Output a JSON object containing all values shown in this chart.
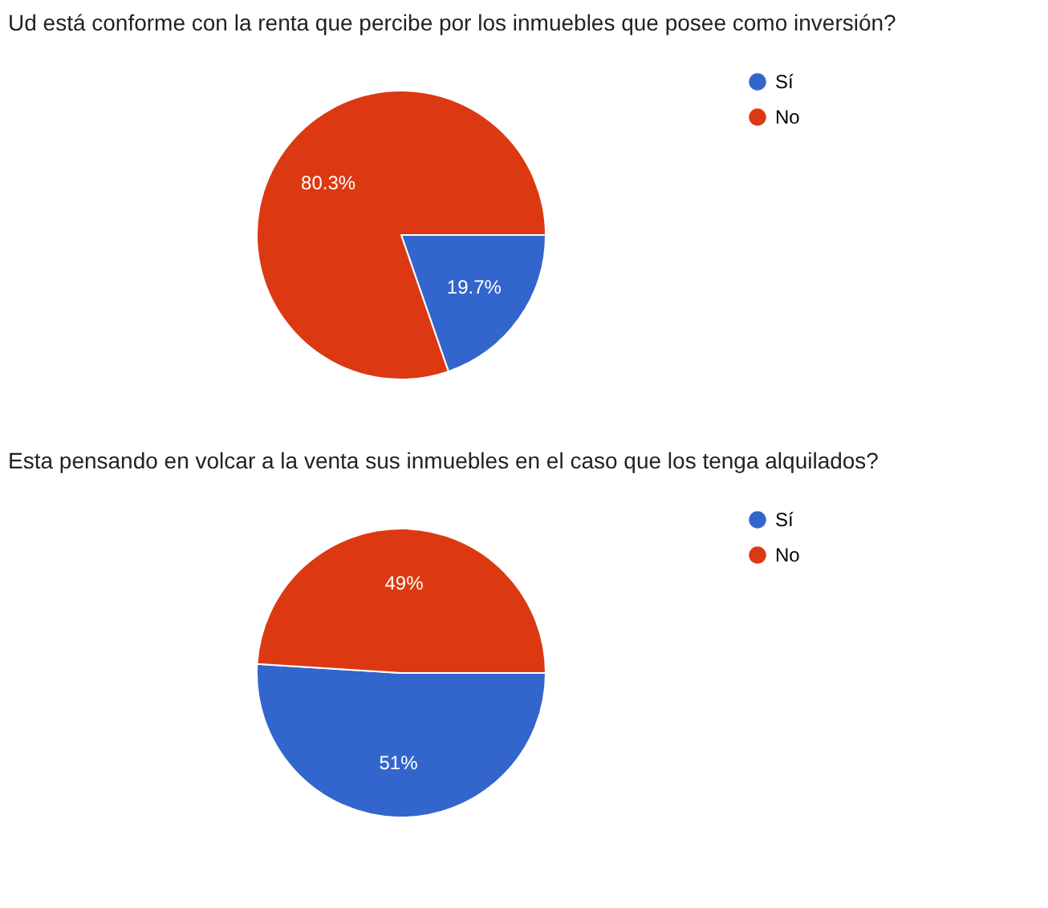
{
  "chart_data": [
    {
      "type": "pie",
      "title": "Ud está conforme con la renta que percibe por los inmuebles que posee como inversión?",
      "categories": [
        "Sí",
        "No"
      ],
      "values": [
        19.7,
        80.3
      ],
      "colors": [
        "#3366cc",
        "#dc3912"
      ],
      "value_labels": [
        "19.7%",
        "80.3%"
      ],
      "legend": "top right"
    },
    {
      "type": "pie",
      "title": "Esta pensando en volcar a la venta sus inmuebles en el caso que los tenga alquilados?",
      "categories": [
        "Sí",
        "No"
      ],
      "values": [
        51,
        49
      ],
      "colors": [
        "#3366cc",
        "#dc3912"
      ],
      "value_labels": [
        "51%",
        "49%"
      ],
      "legend": "top right"
    }
  ]
}
